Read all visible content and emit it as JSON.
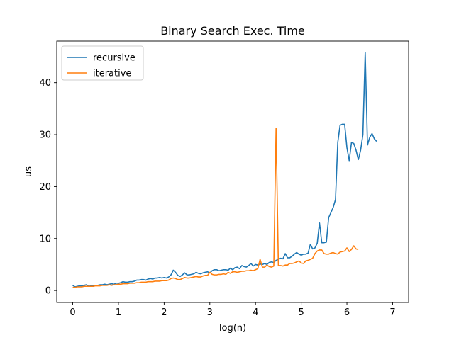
{
  "chart_data": {
    "type": "line",
    "title": "Binary Search Exec. Time",
    "xlabel": "log(n)",
    "ylabel": "us",
    "xlim": [
      -0.35,
      7.35
    ],
    "ylim": [
      -2.3,
      48.0
    ],
    "xticks": [
      0,
      1,
      2,
      3,
      4,
      5,
      6,
      7
    ],
    "yticks": [
      0,
      10,
      20,
      30,
      40
    ],
    "grid": false,
    "legend": "top-left",
    "series": [
      {
        "name": "recursive",
        "color": "#1f77b4",
        "points": [
          [
            0.0,
            1.0
          ],
          [
            0.05,
            0.7
          ],
          [
            0.1,
            0.8
          ],
          [
            0.15,
            0.9
          ],
          [
            0.2,
            0.9
          ],
          [
            0.25,
            1.0
          ],
          [
            0.3,
            1.1
          ],
          [
            0.35,
            0.8
          ],
          [
            0.4,
            0.9
          ],
          [
            0.45,
            0.9
          ],
          [
            0.5,
            1.0
          ],
          [
            0.55,
            1.0
          ],
          [
            0.6,
            1.1
          ],
          [
            0.65,
            1.1
          ],
          [
            0.7,
            1.2
          ],
          [
            0.75,
            1.1
          ],
          [
            0.8,
            1.2
          ],
          [
            0.85,
            1.3
          ],
          [
            0.9,
            1.2
          ],
          [
            0.95,
            1.4
          ],
          [
            1.0,
            1.4
          ],
          [
            1.05,
            1.5
          ],
          [
            1.1,
            1.7
          ],
          [
            1.15,
            1.6
          ],
          [
            1.2,
            1.6
          ],
          [
            1.25,
            1.7
          ],
          [
            1.3,
            1.7
          ],
          [
            1.35,
            1.8
          ],
          [
            1.4,
            2.0
          ],
          [
            1.45,
            2.0
          ],
          [
            1.5,
            2.1
          ],
          [
            1.55,
            2.1
          ],
          [
            1.6,
            2.0
          ],
          [
            1.65,
            2.2
          ],
          [
            1.7,
            2.3
          ],
          [
            1.75,
            2.2
          ],
          [
            1.8,
            2.4
          ],
          [
            1.85,
            2.4
          ],
          [
            1.9,
            2.5
          ],
          [
            1.95,
            2.4
          ],
          [
            2.0,
            2.5
          ],
          [
            2.05,
            2.4
          ],
          [
            2.1,
            2.6
          ],
          [
            2.15,
            3.0
          ],
          [
            2.2,
            3.9
          ],
          [
            2.25,
            3.5
          ],
          [
            2.3,
            2.9
          ],
          [
            2.35,
            2.7
          ],
          [
            2.4,
            3.0
          ],
          [
            2.45,
            3.4
          ],
          [
            2.5,
            3.0
          ],
          [
            2.55,
            3.0
          ],
          [
            2.6,
            3.1
          ],
          [
            2.65,
            3.2
          ],
          [
            2.7,
            3.5
          ],
          [
            2.75,
            3.3
          ],
          [
            2.8,
            3.2
          ],
          [
            2.85,
            3.4
          ],
          [
            2.9,
            3.5
          ],
          [
            2.95,
            3.6
          ],
          [
            3.0,
            3.4
          ],
          [
            3.05,
            3.8
          ],
          [
            3.1,
            4.0
          ],
          [
            3.15,
            4.0
          ],
          [
            3.2,
            3.8
          ],
          [
            3.25,
            3.9
          ],
          [
            3.3,
            4.0
          ],
          [
            3.35,
            4.0
          ],
          [
            3.4,
            3.9
          ],
          [
            3.45,
            4.3
          ],
          [
            3.5,
            4.0
          ],
          [
            3.55,
            4.4
          ],
          [
            3.6,
            4.5
          ],
          [
            3.65,
            4.2
          ],
          [
            3.7,
            4.8
          ],
          [
            3.75,
            4.6
          ],
          [
            3.8,
            4.5
          ],
          [
            3.85,
            4.8
          ],
          [
            3.9,
            5.2
          ],
          [
            3.95,
            4.7
          ],
          [
            4.0,
            5.0
          ],
          [
            4.05,
            4.9
          ],
          [
            4.1,
            5.1
          ],
          [
            4.15,
            5.0
          ],
          [
            4.2,
            5.2
          ],
          [
            4.25,
            5.0
          ],
          [
            4.3,
            5.4
          ],
          [
            4.35,
            5.5
          ],
          [
            4.4,
            5.4
          ],
          [
            4.45,
            5.8
          ],
          [
            4.5,
            6.0
          ],
          [
            4.55,
            6.2
          ],
          [
            4.6,
            6.1
          ],
          [
            4.65,
            7.1
          ],
          [
            4.7,
            6.3
          ],
          [
            4.75,
            6.3
          ],
          [
            4.8,
            6.6
          ],
          [
            4.85,
            7.0
          ],
          [
            4.9,
            7.3
          ],
          [
            4.95,
            7.0
          ],
          [
            5.0,
            6.8
          ],
          [
            5.05,
            7.0
          ],
          [
            5.1,
            7.0
          ],
          [
            5.15,
            7.2
          ],
          [
            5.2,
            8.9
          ],
          [
            5.25,
            8.0
          ],
          [
            5.3,
            8.2
          ],
          [
            5.35,
            9.1
          ],
          [
            5.4,
            13.0
          ],
          [
            5.45,
            9.2
          ],
          [
            5.5,
            9.2
          ],
          [
            5.55,
            9.3
          ],
          [
            5.6,
            14.0
          ],
          [
            5.65,
            15.0
          ],
          [
            5.7,
            16.0
          ],
          [
            5.75,
            17.5
          ],
          [
            5.8,
            28.5
          ],
          [
            5.85,
            31.8
          ],
          [
            5.9,
            32.0
          ],
          [
            5.95,
            32.0
          ],
          [
            6.0,
            27.5
          ],
          [
            6.05,
            25.0
          ],
          [
            6.1,
            28.5
          ],
          [
            6.15,
            28.3
          ],
          [
            6.2,
            27.0
          ],
          [
            6.25,
            25.2
          ],
          [
            6.3,
            27.0
          ],
          [
            6.35,
            30.0
          ],
          [
            6.4,
            45.8
          ],
          [
            6.45,
            28.0
          ],
          [
            6.5,
            29.5
          ],
          [
            6.55,
            30.2
          ],
          [
            6.6,
            29.2
          ],
          [
            6.65,
            28.7
          ]
        ]
      },
      {
        "name": "iterative",
        "color": "#ff7f0e",
        "points": [
          [
            0.0,
            0.6
          ],
          [
            0.05,
            0.6
          ],
          [
            0.1,
            0.7
          ],
          [
            0.15,
            0.7
          ],
          [
            0.2,
            0.7
          ],
          [
            0.25,
            0.8
          ],
          [
            0.3,
            0.8
          ],
          [
            0.35,
            0.8
          ],
          [
            0.4,
            0.8
          ],
          [
            0.45,
            0.8
          ],
          [
            0.5,
            0.9
          ],
          [
            0.55,
            0.9
          ],
          [
            0.6,
            0.9
          ],
          [
            0.65,
            1.0
          ],
          [
            0.7,
            1.0
          ],
          [
            0.75,
            1.0
          ],
          [
            0.8,
            1.1
          ],
          [
            0.85,
            1.0
          ],
          [
            0.9,
            1.1
          ],
          [
            0.95,
            1.1
          ],
          [
            1.0,
            1.2
          ],
          [
            1.05,
            1.2
          ],
          [
            1.1,
            1.3
          ],
          [
            1.15,
            1.3
          ],
          [
            1.2,
            1.3
          ],
          [
            1.25,
            1.4
          ],
          [
            1.3,
            1.4
          ],
          [
            1.35,
            1.4
          ],
          [
            1.4,
            1.5
          ],
          [
            1.45,
            1.5
          ],
          [
            1.5,
            1.6
          ],
          [
            1.55,
            1.6
          ],
          [
            1.6,
            1.6
          ],
          [
            1.65,
            1.7
          ],
          [
            1.7,
            1.7
          ],
          [
            1.75,
            1.7
          ],
          [
            1.8,
            1.8
          ],
          [
            1.85,
            1.8
          ],
          [
            1.9,
            1.8
          ],
          [
            1.95,
            1.9
          ],
          [
            2.0,
            1.9
          ],
          [
            2.05,
            1.9
          ],
          [
            2.1,
            2.0
          ],
          [
            2.15,
            2.3
          ],
          [
            2.2,
            2.4
          ],
          [
            2.25,
            2.3
          ],
          [
            2.3,
            2.1
          ],
          [
            2.35,
            2.1
          ],
          [
            2.4,
            2.3
          ],
          [
            2.45,
            2.5
          ],
          [
            2.5,
            2.4
          ],
          [
            2.55,
            2.4
          ],
          [
            2.6,
            2.5
          ],
          [
            2.65,
            2.6
          ],
          [
            2.7,
            2.7
          ],
          [
            2.75,
            2.6
          ],
          [
            2.8,
            2.6
          ],
          [
            2.85,
            2.8
          ],
          [
            2.9,
            2.9
          ],
          [
            2.95,
            2.9
          ],
          [
            3.0,
            3.5
          ],
          [
            3.05,
            3.1
          ],
          [
            3.1,
            3.0
          ],
          [
            3.15,
            3.0
          ],
          [
            3.2,
            3.1
          ],
          [
            3.25,
            3.1
          ],
          [
            3.3,
            3.2
          ],
          [
            3.35,
            3.1
          ],
          [
            3.4,
            3.5
          ],
          [
            3.45,
            3.3
          ],
          [
            3.5,
            3.6
          ],
          [
            3.55,
            3.6
          ],
          [
            3.6,
            3.5
          ],
          [
            3.65,
            3.6
          ],
          [
            3.7,
            3.7
          ],
          [
            3.75,
            3.7
          ],
          [
            3.8,
            3.8
          ],
          [
            3.85,
            3.8
          ],
          [
            3.9,
            3.9
          ],
          [
            3.95,
            3.8
          ],
          [
            4.0,
            4.0
          ],
          [
            4.05,
            4.2
          ],
          [
            4.1,
            6.0
          ],
          [
            4.15,
            4.5
          ],
          [
            4.2,
            4.5
          ],
          [
            4.25,
            4.9
          ],
          [
            4.3,
            4.6
          ],
          [
            4.35,
            4.5
          ],
          [
            4.4,
            4.7
          ],
          [
            4.45,
            31.2
          ],
          [
            4.5,
            4.8
          ],
          [
            4.55,
            4.8
          ],
          [
            4.6,
            4.7
          ],
          [
            4.65,
            4.9
          ],
          [
            4.7,
            4.9
          ],
          [
            4.75,
            5.2
          ],
          [
            4.8,
            5.2
          ],
          [
            4.85,
            5.3
          ],
          [
            4.9,
            5.5
          ],
          [
            4.95,
            5.7
          ],
          [
            5.0,
            5.3
          ],
          [
            5.05,
            5.2
          ],
          [
            5.1,
            5.7
          ],
          [
            5.15,
            5.8
          ],
          [
            5.2,
            6.0
          ],
          [
            5.25,
            6.2
          ],
          [
            5.3,
            7.1
          ],
          [
            5.35,
            7.6
          ],
          [
            5.4,
            7.8
          ],
          [
            5.45,
            7.8
          ],
          [
            5.5,
            7.1
          ],
          [
            5.55,
            7.0
          ],
          [
            5.6,
            7.0
          ],
          [
            5.65,
            7.2
          ],
          [
            5.7,
            7.3
          ],
          [
            5.75,
            7.1
          ],
          [
            5.8,
            7.0
          ],
          [
            5.85,
            7.4
          ],
          [
            5.9,
            7.5
          ],
          [
            5.95,
            7.6
          ],
          [
            6.0,
            8.2
          ],
          [
            6.05,
            7.5
          ],
          [
            6.1,
            7.9
          ],
          [
            6.15,
            8.6
          ],
          [
            6.2,
            8.0
          ],
          [
            6.25,
            7.9
          ]
        ]
      }
    ]
  }
}
